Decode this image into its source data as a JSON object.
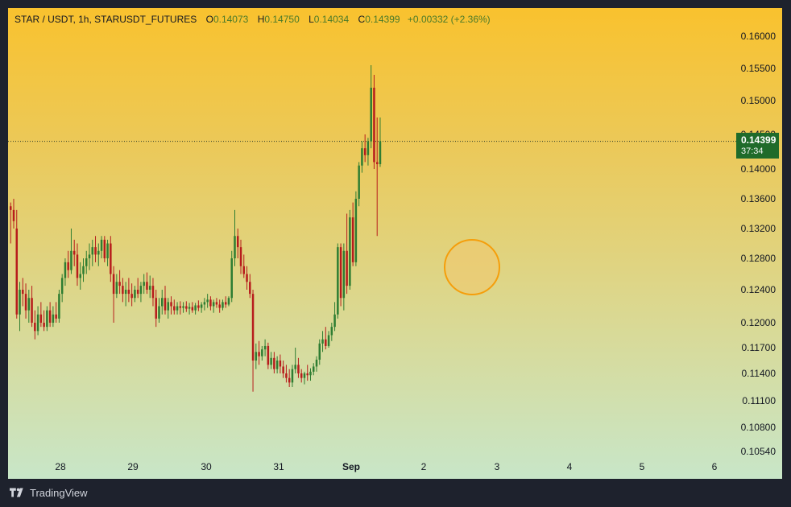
{
  "legend": {
    "symbol": "STAR / USDT, 1h, STARUSDT_FUTURES",
    "open_label": "O",
    "open": "0.14073",
    "high_label": "H",
    "high": "0.14750",
    "low_label": "L",
    "low": "0.14034",
    "close_label": "C",
    "close": "0.14399",
    "change": "+0.00332 (+2.36%)"
  },
  "last_price": {
    "value": "0.14399",
    "countdown": "37:34"
  },
  "brand": {
    "name": "TradingView",
    "icon": "tradingview-logo-icon"
  },
  "colors": {
    "up": "#2e7d32",
    "down": "#b71c1c",
    "marker": "#f59e0b",
    "last_tag": "#1f6b2a"
  },
  "chart_data": {
    "type": "candlestick",
    "y_ticks": [
      "0.16000",
      "0.15500",
      "0.15000",
      "0.14500",
      "0.14000",
      "0.13600",
      "0.13200",
      "0.12800",
      "0.12400",
      "0.12000",
      "0.11700",
      "0.11400",
      "0.11100",
      "0.10800",
      "0.10540"
    ],
    "x_ticks": [
      "28",
      "29",
      "30",
      "31",
      "Sep",
      "2",
      "3",
      "4",
      "5",
      "6"
    ],
    "last_price": 0.14399,
    "candles_ohlc": [
      [
        0.135,
        0.1355,
        0.13,
        0.1345
      ],
      [
        0.1345,
        0.136,
        0.132,
        0.133
      ],
      [
        0.132,
        0.1345,
        0.1205,
        0.121
      ],
      [
        0.121,
        0.125,
        0.119,
        0.124
      ],
      [
        0.124,
        0.1255,
        0.122,
        0.1235
      ],
      [
        0.1235,
        0.1248,
        0.1205,
        0.1215
      ],
      [
        0.1215,
        0.124,
        0.12,
        0.123
      ],
      [
        0.123,
        0.1245,
        0.1195,
        0.12
      ],
      [
        0.12,
        0.1215,
        0.118,
        0.119
      ],
      [
        0.119,
        0.122,
        0.1185,
        0.121
      ],
      [
        0.121,
        0.1225,
        0.1195,
        0.12
      ],
      [
        0.12,
        0.1215,
        0.119,
        0.1195
      ],
      [
        0.1195,
        0.122,
        0.119,
        0.1215
      ],
      [
        0.1215,
        0.1225,
        0.1195,
        0.12
      ],
      [
        0.12,
        0.122,
        0.1195,
        0.121
      ],
      [
        0.121,
        0.1225,
        0.12,
        0.1205
      ],
      [
        0.1205,
        0.124,
        0.12,
        0.1235
      ],
      [
        0.1235,
        0.126,
        0.1225,
        0.1255
      ],
      [
        0.1255,
        0.128,
        0.1245,
        0.1275
      ],
      [
        0.1275,
        0.129,
        0.1255,
        0.1265
      ],
      [
        0.1265,
        0.132,
        0.126,
        0.129
      ],
      [
        0.129,
        0.1305,
        0.127,
        0.1285
      ],
      [
        0.1285,
        0.13,
        0.1245,
        0.1255
      ],
      [
        0.1255,
        0.1275,
        0.124,
        0.126
      ],
      [
        0.126,
        0.128,
        0.125,
        0.127
      ],
      [
        0.127,
        0.129,
        0.126,
        0.128
      ],
      [
        0.128,
        0.13,
        0.1265,
        0.1285
      ],
      [
        0.1285,
        0.1305,
        0.127,
        0.1295
      ],
      [
        0.1295,
        0.131,
        0.1275,
        0.1285
      ],
      [
        0.1285,
        0.13,
        0.127,
        0.129
      ],
      [
        0.129,
        0.131,
        0.128,
        0.1305
      ],
      [
        0.1305,
        0.131,
        0.1275,
        0.128
      ],
      [
        0.128,
        0.1305,
        0.127,
        0.13
      ],
      [
        0.13,
        0.131,
        0.125,
        0.126
      ],
      [
        0.126,
        0.127,
        0.12,
        0.1235
      ],
      [
        0.1235,
        0.126,
        0.123,
        0.125
      ],
      [
        0.125,
        0.1265,
        0.1235,
        0.1245
      ],
      [
        0.1245,
        0.1255,
        0.1225,
        0.1235
      ],
      [
        0.1235,
        0.125,
        0.122,
        0.124
      ],
      [
        0.124,
        0.1255,
        0.1225,
        0.1235
      ],
      [
        0.1235,
        0.1248,
        0.122,
        0.123
      ],
      [
        0.123,
        0.1245,
        0.1225,
        0.124
      ],
      [
        0.124,
        0.1255,
        0.123,
        0.1235
      ],
      [
        0.1235,
        0.125,
        0.1225,
        0.1245
      ],
      [
        0.1245,
        0.126,
        0.1235,
        0.125
      ],
      [
        0.125,
        0.1262,
        0.1235,
        0.124
      ],
      [
        0.124,
        0.1258,
        0.123,
        0.1245
      ],
      [
        0.1245,
        0.1255,
        0.122,
        0.123
      ],
      [
        0.123,
        0.124,
        0.1195,
        0.1205
      ],
      [
        0.1205,
        0.123,
        0.12,
        0.122
      ],
      [
        0.122,
        0.124,
        0.121,
        0.123
      ],
      [
        0.123,
        0.1245,
        0.121,
        0.1215
      ],
      [
        0.1215,
        0.123,
        0.1205,
        0.1225
      ],
      [
        0.1225,
        0.1232,
        0.121,
        0.122
      ],
      [
        0.122,
        0.1228,
        0.121,
        0.1215
      ],
      [
        0.1215,
        0.1225,
        0.121,
        0.122
      ],
      [
        0.122,
        0.1226,
        0.121,
        0.1218
      ],
      [
        0.1218,
        0.1225,
        0.1212,
        0.122
      ],
      [
        0.122,
        0.1226,
        0.1213,
        0.1217
      ],
      [
        0.1217,
        0.1224,
        0.121,
        0.1219
      ],
      [
        0.1219,
        0.1225,
        0.1212,
        0.1215
      ],
      [
        0.1215,
        0.1224,
        0.121,
        0.1221
      ],
      [
        0.1221,
        0.1227,
        0.1214,
        0.1218
      ],
      [
        0.1218,
        0.1225,
        0.1212,
        0.1222
      ],
      [
        0.1222,
        0.123,
        0.1215,
        0.1225
      ],
      [
        0.1225,
        0.1235,
        0.1218,
        0.1228
      ],
      [
        0.1228,
        0.1232,
        0.1215,
        0.122
      ],
      [
        0.122,
        0.1228,
        0.1212,
        0.1225
      ],
      [
        0.1225,
        0.123,
        0.1218,
        0.1222
      ],
      [
        0.1222,
        0.1228,
        0.1212,
        0.1218
      ],
      [
        0.1218,
        0.1228,
        0.1215,
        0.1225
      ],
      [
        0.1225,
        0.1232,
        0.1218,
        0.1222
      ],
      [
        0.1222,
        0.1232,
        0.122,
        0.123
      ],
      [
        0.123,
        0.129,
        0.1225,
        0.128
      ],
      [
        0.128,
        0.1345,
        0.127,
        0.131
      ],
      [
        0.131,
        0.132,
        0.128,
        0.1295
      ],
      [
        0.1295,
        0.1305,
        0.126,
        0.127
      ],
      [
        0.127,
        0.1285,
        0.1255,
        0.126
      ],
      [
        0.126,
        0.127,
        0.124,
        0.125
      ],
      [
        0.125,
        0.126,
        0.123,
        0.1235
      ],
      [
        0.1235,
        0.124,
        0.112,
        0.1155
      ],
      [
        0.1155,
        0.1175,
        0.1145,
        0.1165
      ],
      [
        0.1165,
        0.1178,
        0.115,
        0.116
      ],
      [
        0.116,
        0.1172,
        0.1155,
        0.1168
      ],
      [
        0.1168,
        0.118,
        0.116,
        0.1172
      ],
      [
        0.1172,
        0.1176,
        0.1145,
        0.115
      ],
      [
        0.115,
        0.1165,
        0.1145,
        0.1158
      ],
      [
        0.1158,
        0.1165,
        0.114,
        0.1145
      ],
      [
        0.1145,
        0.116,
        0.114,
        0.1155
      ],
      [
        0.1155,
        0.1162,
        0.114,
        0.1148
      ],
      [
        0.1148,
        0.1155,
        0.1135,
        0.114
      ],
      [
        0.114,
        0.115,
        0.113,
        0.1135
      ],
      [
        0.1135,
        0.1145,
        0.1125,
        0.113
      ],
      [
        0.113,
        0.115,
        0.1125,
        0.1145
      ],
      [
        0.1145,
        0.117,
        0.114,
        0.115
      ],
      [
        0.115,
        0.1158,
        0.1135,
        0.114
      ],
      [
        0.114,
        0.1145,
        0.113,
        0.1135
      ],
      [
        0.1135,
        0.1142,
        0.1128,
        0.114
      ],
      [
        0.114,
        0.115,
        0.1132,
        0.1138
      ],
      [
        0.1138,
        0.1146,
        0.1132,
        0.1142
      ],
      [
        0.1142,
        0.1152,
        0.1138,
        0.1148
      ],
      [
        0.1148,
        0.116,
        0.1142,
        0.1156
      ],
      [
        0.1156,
        0.118,
        0.115,
        0.1175
      ],
      [
        0.1175,
        0.119,
        0.1165,
        0.118
      ],
      [
        0.118,
        0.1195,
        0.1168,
        0.1172
      ],
      [
        0.1172,
        0.119,
        0.117,
        0.1185
      ],
      [
        0.1185,
        0.12,
        0.1178,
        0.1195
      ],
      [
        0.1195,
        0.1225,
        0.119,
        0.121
      ],
      [
        0.121,
        0.13,
        0.1205,
        0.1295
      ],
      [
        0.1295,
        0.13,
        0.122,
        0.123
      ],
      [
        0.123,
        0.13,
        0.1215,
        0.129
      ],
      [
        0.129,
        0.134,
        0.1235,
        0.1245
      ],
      [
        0.1245,
        0.1345,
        0.124,
        0.1335
      ],
      [
        0.1335,
        0.1355,
        0.127,
        0.1275
      ],
      [
        0.1275,
        0.137,
        0.127,
        0.136
      ],
      [
        0.136,
        0.141,
        0.135,
        0.1405
      ],
      [
        0.1405,
        0.144,
        0.1395,
        0.143
      ],
      [
        0.143,
        0.145,
        0.141,
        0.142
      ],
      [
        0.142,
        0.1445,
        0.1405,
        0.144
      ],
      [
        0.144,
        0.1555,
        0.143,
        0.152
      ],
      [
        0.152,
        0.154,
        0.14,
        0.141
      ],
      [
        0.141,
        0.1475,
        0.131,
        0.1407
      ],
      [
        0.1407,
        0.1475,
        0.1403,
        0.144
      ]
    ]
  }
}
